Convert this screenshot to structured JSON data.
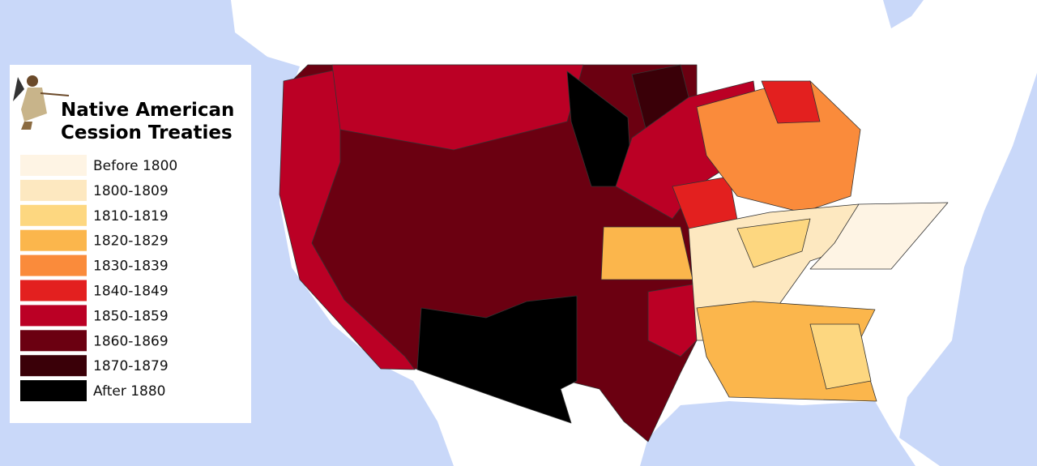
{
  "title_lines": [
    "Native American",
    "Cession Treaties"
  ],
  "legend": [
    {
      "label": "Before 1800",
      "color": "#fef4e4"
    },
    {
      "label": "1800-1809",
      "color": "#fde8c0"
    },
    {
      "label": "1810-1819",
      "color": "#fdd780"
    },
    {
      "label": "1820-1829",
      "color": "#fbb64c"
    },
    {
      "label": "1830-1839",
      "color": "#fa8b3b"
    },
    {
      "label": "1840-1849",
      "color": "#e3201f"
    },
    {
      "label": "1850-1859",
      "color": "#bb0025"
    },
    {
      "label": "1860-1869",
      "color": "#6b0011"
    },
    {
      "label": "1870-1879",
      "color": "#3a0008"
    },
    {
      "label": "After 1880",
      "color": "#000000"
    }
  ]
}
